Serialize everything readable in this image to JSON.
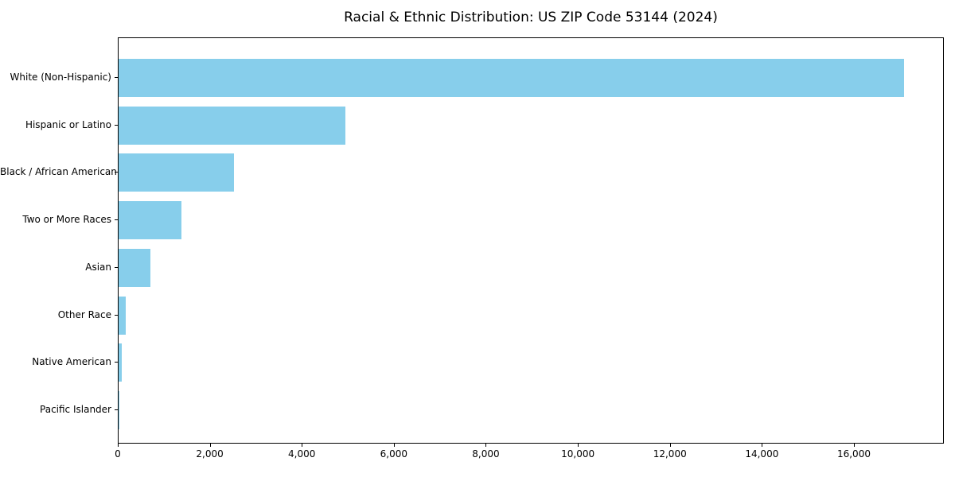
{
  "chart_data": {
    "type": "bar",
    "orientation": "horizontal",
    "title": "Racial & Ethnic Distribution: US ZIP Code 53144 (2024)",
    "categories": [
      "White (Non-Hispanic)",
      "Hispanic or Latino",
      "Black / African American",
      "Two or More Races",
      "Asian",
      "Other Race",
      "Native American",
      "Pacific Islander"
    ],
    "values": [
      17100,
      4940,
      2510,
      1370,
      690,
      160,
      75,
      10
    ],
    "x_ticks": [
      0,
      2000,
      4000,
      6000,
      8000,
      10000,
      12000,
      14000,
      16000
    ],
    "x_tick_labels": [
      "0",
      "2,000",
      "4,000",
      "6,000",
      "8,000",
      "10,000",
      "12,000",
      "14,000",
      "16,000"
    ],
    "xlim": [
      0,
      17955
    ],
    "xlabel": "",
    "ylabel": "",
    "bar_color": "#87ceeb",
    "background_color": "#ffffff",
    "frame_color": "#000000",
    "grid": false,
    "legend": null
  }
}
